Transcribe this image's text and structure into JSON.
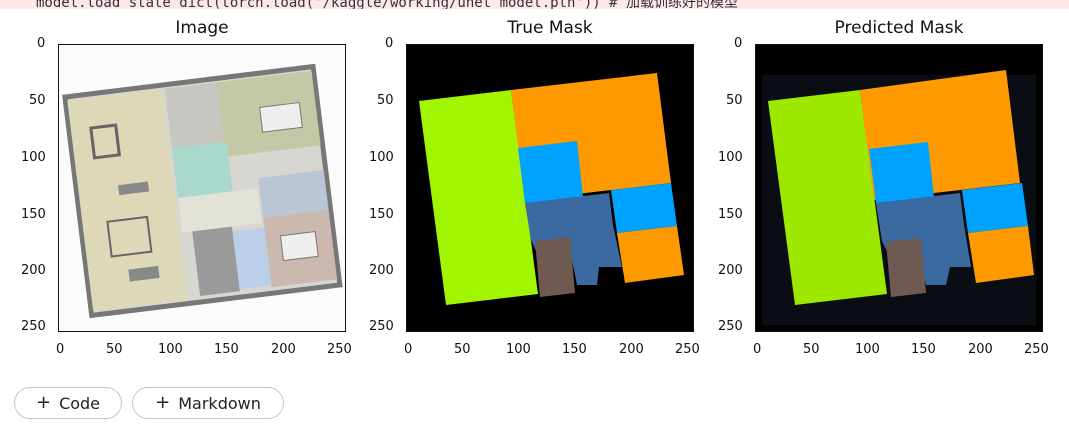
{
  "cell": {
    "code_line": "model.load_state_dict(torch.load('/kaggle/working/unet_model.pth'))  # 加载训练好的模型"
  },
  "panels": [
    {
      "title": "Image"
    },
    {
      "title": "True Mask"
    },
    {
      "title": "Predicted Mask"
    }
  ],
  "axis": {
    "x_ticks": [
      "0",
      "50",
      "100",
      "150",
      "200",
      "250"
    ],
    "y_ticks": [
      "0",
      "50",
      "100",
      "150",
      "200",
      "250"
    ]
  },
  "toolbar": {
    "add_code_label": "Code",
    "add_markdown_label": "Markdown"
  },
  "colors": {
    "living": "#a2f500",
    "bedroom": "#ff9900",
    "bath": "#00a2ff",
    "hall": "#3a6aa0",
    "storage": "#6e5a50",
    "background": "#000000"
  }
}
